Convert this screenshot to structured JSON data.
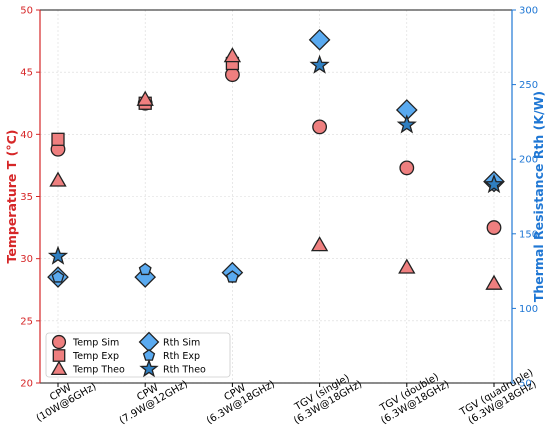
{
  "chart_data": {
    "type": "scatter",
    "categories": [
      [
        "CPW",
        "(10W@6GHz)"
      ],
      [
        "CPW",
        "(7.9W@12GHz)"
      ],
      [
        "CPW",
        "(6.3W@18GHz)"
      ],
      [
        "TGV (single)",
        "(6.3W@18GHz)"
      ],
      [
        "TGV (double)",
        "(6.3W@18GHz)"
      ],
      [
        "TGV (quadruple)",
        "(6.3W@18GHz)"
      ]
    ],
    "ylabel_left": "Temperature T (°C)",
    "ylabel_right": "Thermal Resistance Rth (K/W)",
    "ylim_left": [
      20,
      50
    ],
    "yticks_left": [
      20,
      25,
      30,
      35,
      40,
      45,
      50
    ],
    "ylim_right": [
      50,
      300
    ],
    "yticks_right": [
      50,
      100,
      150,
      200,
      250,
      300
    ],
    "grid": true,
    "legend_position": "lower-left",
    "colors": {
      "left_axis": "#d62728",
      "right_axis": "#1f77d4",
      "temp_fill": "#ee7f7f",
      "rth_fill": "#5aaaf0",
      "rth_theo_fill": "#2f7fc1"
    },
    "series": [
      {
        "name": "Temp Sim",
        "axis": "left",
        "marker": "circle",
        "values": [
          38.8,
          42.5,
          44.8,
          40.6,
          37.3,
          32.5
        ]
      },
      {
        "name": "Temp Exp",
        "axis": "left",
        "marker": "square",
        "values": [
          39.6,
          42.5,
          45.7,
          null,
          null,
          null
        ]
      },
      {
        "name": "Temp Theo",
        "axis": "left",
        "marker": "triangle",
        "values": [
          36.3,
          42.8,
          46.3,
          31.1,
          29.3,
          28.0
        ]
      },
      {
        "name": "Rth Sim",
        "axis": "right",
        "marker": "diamond",
        "values": [
          121,
          121,
          124,
          280,
          233,
          185
        ]
      },
      {
        "name": "Rth Exp",
        "axis": "right",
        "marker": "pentagon",
        "values": [
          121,
          126,
          121,
          null,
          null,
          null
        ]
      },
      {
        "name": "Rth Theo",
        "axis": "right",
        "marker": "star",
        "values": [
          135,
          null,
          null,
          263,
          223,
          183
        ]
      }
    ]
  }
}
